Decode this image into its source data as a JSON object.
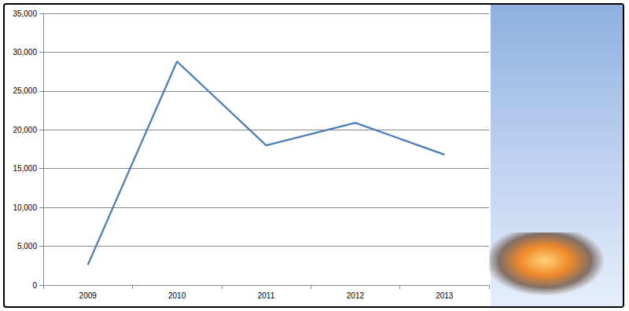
{
  "chart_data": {
    "type": "line",
    "categories": [
      "2009",
      "2010",
      "2011",
      "2012",
      "2013"
    ],
    "values": [
      2600,
      28800,
      18000,
      20900,
      16800
    ],
    "color": "#4a7ebb",
    "marker": "none",
    "ylim": [
      0,
      35000
    ],
    "yticks": [
      0,
      {
        "value": 5000,
        "label": "5,000"
      },
      {
        "value": 10000,
        "label": "10,000"
      },
      {
        "value": 15000,
        "label": "15,000"
      },
      {
        "value": 20000,
        "label": "20,000"
      },
      {
        "value": 25000,
        "label": "25,000"
      },
      {
        "value": 30000,
        "label": "30,000"
      },
      {
        "value": 35000,
        "label": "35,000"
      }
    ],
    "grid": true
  }
}
